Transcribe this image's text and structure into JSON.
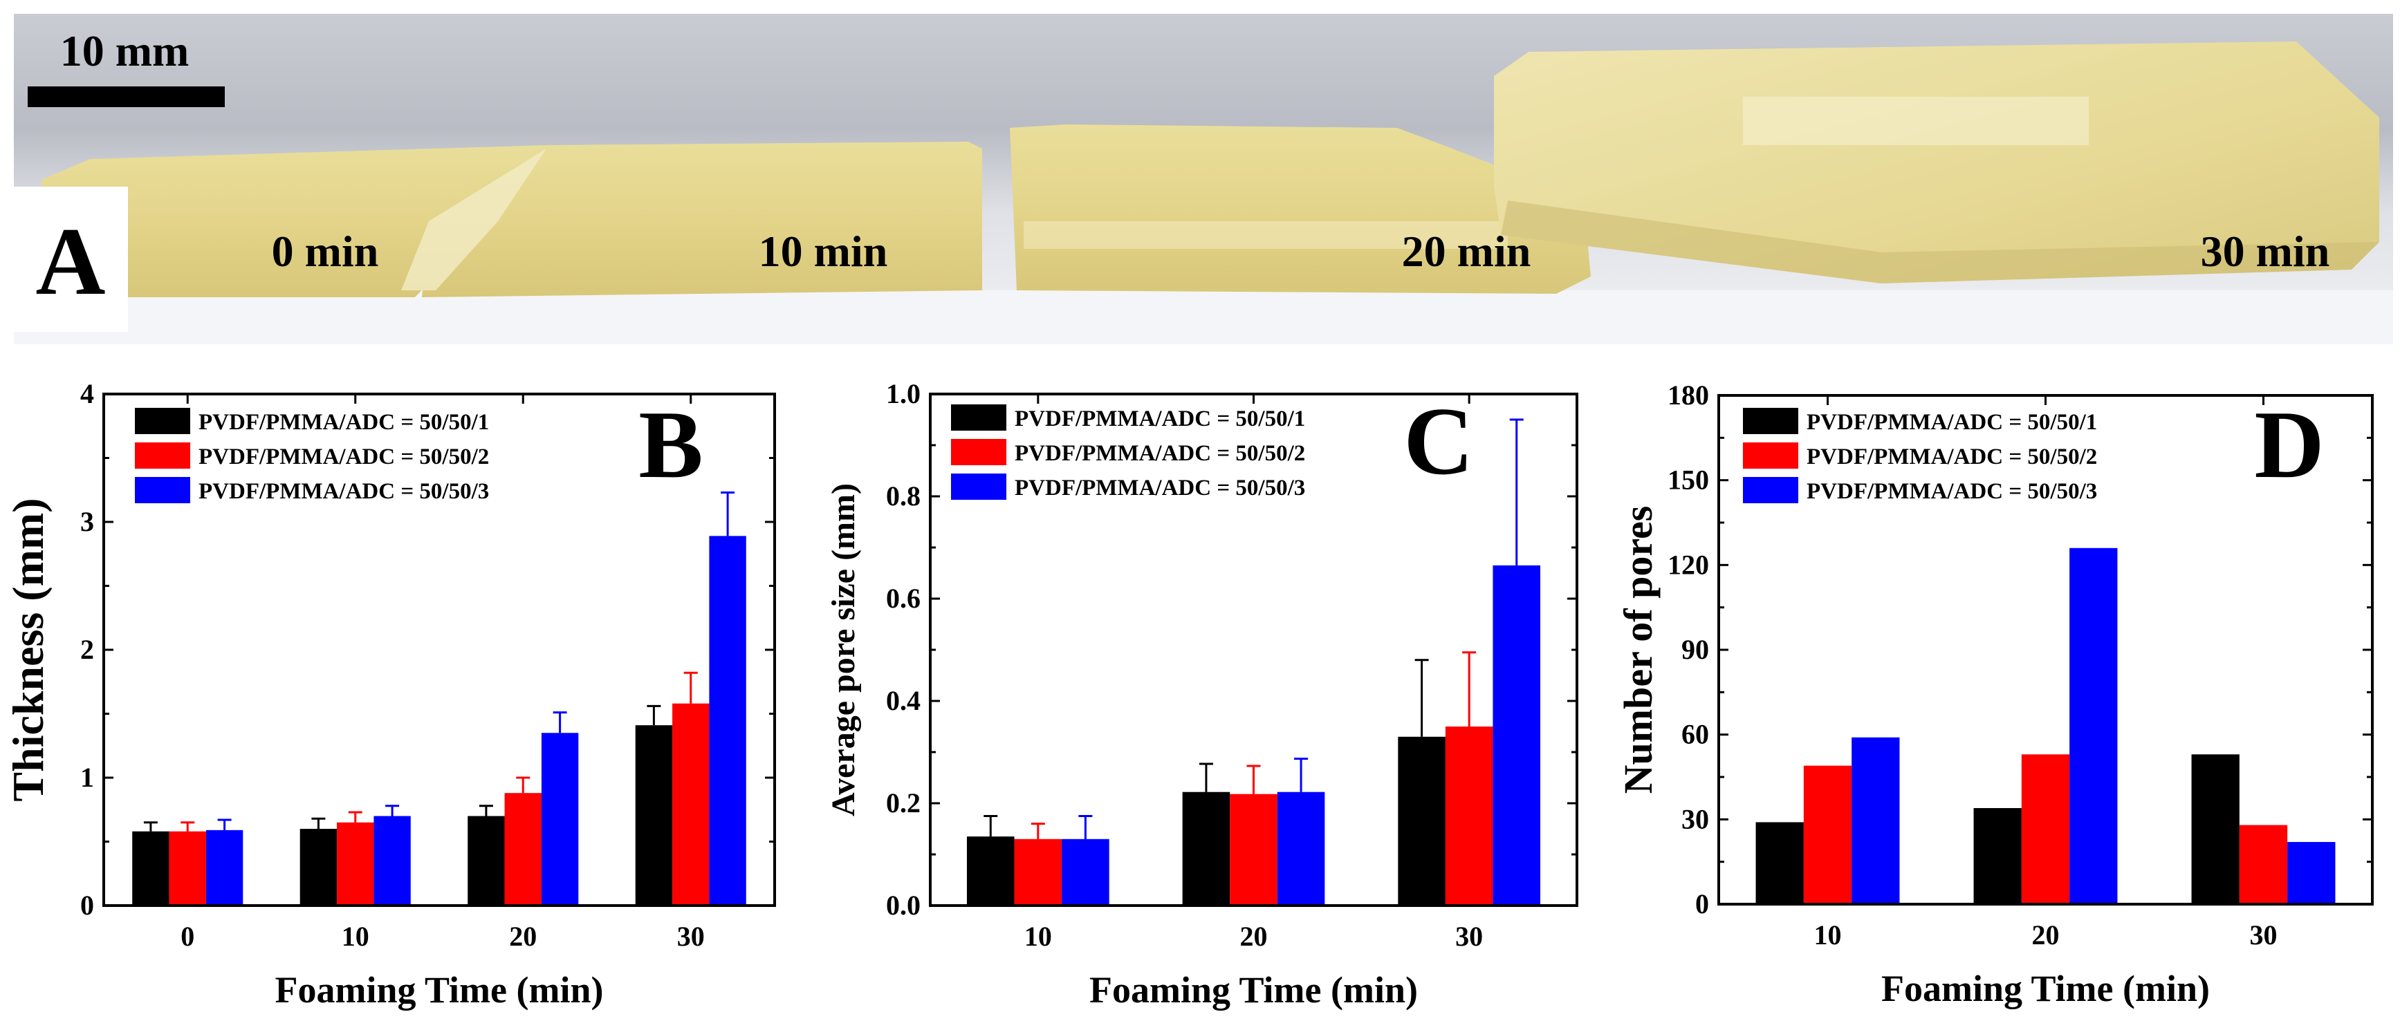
{
  "photo": {
    "scale_bar_label": "10 mm",
    "panel_label": "A",
    "sample_labels": [
      "0 min",
      "10 min",
      "20 min",
      "30 min"
    ]
  },
  "chart_data": [
    {
      "panel": "B",
      "type": "bar",
      "categories": [
        "0",
        "10",
        "20",
        "30"
      ],
      "series": [
        {
          "name": "PVDF/PMMA/ADC = 50/50/1",
          "color": "#000000",
          "values": [
            0.58,
            0.6,
            0.7,
            1.41
          ],
          "errors": [
            0.07,
            0.08,
            0.08,
            0.15
          ]
        },
        {
          "name": "PVDF/PMMA/ADC = 50/50/2",
          "color": "#ff0000",
          "values": [
            0.58,
            0.65,
            0.88,
            1.58
          ],
          "errors": [
            0.07,
            0.08,
            0.12,
            0.24
          ]
        },
        {
          "name": "PVDF/PMMA/ADC = 50/50/3",
          "color": "#0000ff",
          "values": [
            0.59,
            0.7,
            1.35,
            2.89
          ],
          "errors": [
            0.08,
            0.08,
            0.16,
            0.34
          ]
        }
      ],
      "xlabel": "Foaming Time (min)",
      "ylabel": "Thickness  (mm)",
      "ylim": [
        0,
        4
      ],
      "yticks": [
        "0",
        "1",
        "2",
        "3",
        "4"
      ],
      "legend": "top-left"
    },
    {
      "panel": "C",
      "type": "bar",
      "categories": [
        "10",
        "20",
        "30"
      ],
      "series": [
        {
          "name": "PVDF/PMMA/ADC = 50/50/1",
          "color": "#000000",
          "values": [
            0.135,
            0.222,
            0.33
          ],
          "errors": [
            0.04,
            0.055,
            0.15
          ]
        },
        {
          "name": "PVDF/PMMA/ADC = 50/50/2",
          "color": "#ff0000",
          "values": [
            0.13,
            0.218,
            0.35
          ],
          "errors": [
            0.03,
            0.055,
            0.145
          ]
        },
        {
          "name": "PVDF/PMMA/ADC = 50/50/3",
          "color": "#0000ff",
          "values": [
            0.13,
            0.222,
            0.665
          ],
          "errors": [
            0.045,
            0.065,
            0.285
          ]
        }
      ],
      "xlabel": "Foaming Time (min)",
      "ylabel": "Average pore size (mm)",
      "ylim": [
        0,
        1.0
      ],
      "yticks": [
        "0.0",
        "0.2",
        "0.4",
        "0.6",
        "0.8",
        "1.0"
      ],
      "legend": "top-left"
    },
    {
      "panel": "D",
      "type": "bar",
      "categories": [
        "10",
        "20",
        "30"
      ],
      "series": [
        {
          "name": "PVDF/PMMA/ADC = 50/50/1",
          "color": "#000000",
          "values": [
            29,
            34,
            53
          ]
        },
        {
          "name": "PVDF/PMMA/ADC = 50/50/2",
          "color": "#ff0000",
          "values": [
            49,
            53,
            28
          ]
        },
        {
          "name": "PVDF/PMMA/ADC = 50/50/3",
          "color": "#0000ff",
          "values": [
            59,
            126,
            22
          ]
        }
      ],
      "xlabel": "Foaming Time (min)",
      "ylabel": "Number of pores",
      "ylim": [
        0,
        180
      ],
      "yticks": [
        "0",
        "30",
        "60",
        "90",
        "120",
        "150",
        "180"
      ],
      "legend": "top-left"
    }
  ]
}
